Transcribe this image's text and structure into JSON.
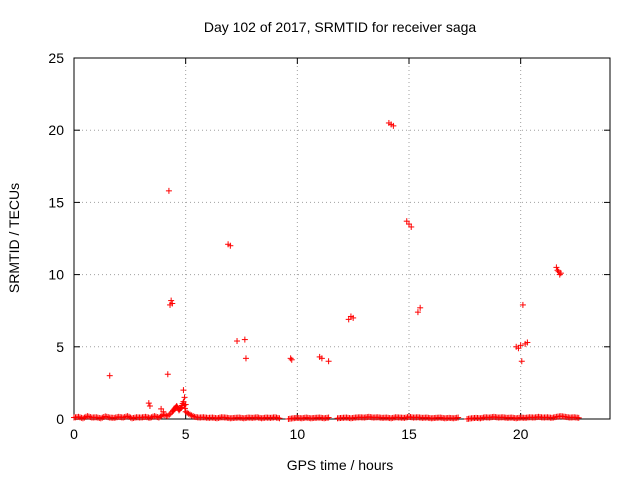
{
  "chart_data": {
    "type": "scatter",
    "title": "Day 102 of 2017, SRMTID for receiver saga",
    "xlabel": "GPS time / hours",
    "ylabel": "SRMTID / TECUs",
    "xlim": [
      0,
      24
    ],
    "ylim": [
      0,
      25
    ],
    "xticks": [
      0,
      5,
      10,
      15,
      20
    ],
    "yticks": [
      0,
      5,
      10,
      15,
      20,
      25
    ],
    "grid": true,
    "marker": "plus",
    "color": "#ff0000",
    "series": [
      {
        "baseline_points": [
          [
            0.0,
            0.1
          ],
          [
            0.2,
            0.15
          ],
          [
            0.4,
            0.05
          ],
          [
            0.6,
            0.2
          ],
          [
            0.8,
            0.1
          ],
          [
            1.0,
            0.12
          ],
          [
            1.2,
            0.05
          ],
          [
            1.4,
            0.18
          ],
          [
            1.6,
            0.1
          ],
          [
            1.8,
            0.08
          ],
          [
            2.0,
            0.15
          ],
          [
            2.2,
            0.1
          ],
          [
            2.4,
            0.2
          ],
          [
            2.6,
            0.05
          ],
          [
            2.8,
            0.12
          ],
          [
            3.0,
            0.1
          ],
          [
            3.2,
            0.15
          ],
          [
            3.4,
            0.08
          ],
          [
            3.6,
            0.2
          ],
          [
            3.8,
            0.1
          ],
          [
            4.0,
            0.3
          ],
          [
            4.2,
            0.2
          ],
          [
            4.4,
            0.5
          ],
          [
            4.5,
            0.7
          ],
          [
            4.6,
            0.9
          ],
          [
            4.7,
            0.6
          ],
          [
            4.8,
            0.8
          ],
          [
            4.9,
            1.2
          ],
          [
            5.0,
            0.5
          ],
          [
            5.2,
            0.3
          ],
          [
            5.4,
            0.15
          ],
          [
            5.6,
            0.1
          ],
          [
            5.8,
            0.12
          ],
          [
            6.0,
            0.08
          ],
          [
            6.2,
            0.1
          ],
          [
            6.4,
            0.05
          ],
          [
            6.6,
            0.12
          ],
          [
            6.8,
            0.1
          ],
          [
            7.0,
            0.05
          ],
          [
            7.2,
            0.08
          ],
          [
            7.4,
            0.1
          ],
          [
            7.6,
            0.05
          ],
          [
            7.8,
            0.1
          ],
          [
            8.0,
            0.08
          ],
          [
            8.2,
            0.12
          ],
          [
            8.4,
            0.05
          ],
          [
            8.6,
            0.1
          ],
          [
            8.8,
            0.08
          ],
          [
            9.0,
            0.12
          ],
          [
            9.2,
            0.05
          ],
          [
            9.6,
            0.0
          ],
          [
            9.8,
            0.05
          ],
          [
            10.0,
            0.08
          ],
          [
            10.2,
            0.05
          ],
          [
            10.4,
            0.1
          ],
          [
            10.6,
            0.05
          ],
          [
            10.8,
            0.08
          ],
          [
            11.0,
            0.1
          ],
          [
            11.2,
            0.05
          ],
          [
            11.4,
            0.1
          ],
          [
            11.8,
            0.05
          ],
          [
            12.0,
            0.08
          ],
          [
            12.2,
            0.1
          ],
          [
            12.4,
            0.05
          ],
          [
            12.6,
            0.1
          ],
          [
            12.8,
            0.12
          ],
          [
            13.0,
            0.1
          ],
          [
            13.2,
            0.15
          ],
          [
            13.4,
            0.1
          ],
          [
            13.6,
            0.12
          ],
          [
            13.8,
            0.08
          ],
          [
            14.0,
            0.1
          ],
          [
            14.2,
            0.05
          ],
          [
            14.4,
            0.12
          ],
          [
            14.6,
            0.1
          ],
          [
            14.8,
            0.08
          ],
          [
            15.0,
            0.15
          ],
          [
            15.2,
            0.1
          ],
          [
            15.4,
            0.12
          ],
          [
            15.6,
            0.08
          ],
          [
            15.8,
            0.1
          ],
          [
            16.0,
            0.05
          ],
          [
            16.2,
            0.08
          ],
          [
            16.4,
            0.1
          ],
          [
            16.6,
            0.05
          ],
          [
            16.8,
            0.08
          ],
          [
            17.0,
            0.05
          ],
          [
            17.2,
            0.1
          ],
          [
            17.6,
            0.0
          ],
          [
            17.8,
            0.05
          ],
          [
            18.0,
            0.08
          ],
          [
            18.2,
            0.05
          ],
          [
            18.4,
            0.12
          ],
          [
            18.6,
            0.1
          ],
          [
            18.8,
            0.15
          ],
          [
            19.0,
            0.1
          ],
          [
            19.2,
            0.12
          ],
          [
            19.4,
            0.08
          ],
          [
            19.6,
            0.1
          ],
          [
            19.8,
            0.05
          ],
          [
            20.0,
            0.1
          ],
          [
            20.2,
            0.08
          ],
          [
            20.4,
            0.12
          ],
          [
            20.6,
            0.1
          ],
          [
            20.8,
            0.15
          ],
          [
            21.0,
            0.1
          ],
          [
            21.2,
            0.12
          ],
          [
            21.4,
            0.08
          ],
          [
            21.6,
            0.15
          ],
          [
            21.8,
            0.2
          ],
          [
            22.0,
            0.15
          ],
          [
            22.2,
            0.1
          ],
          [
            22.4,
            0.12
          ],
          [
            22.6,
            0.08
          ]
        ],
        "outlier_points": [
          [
            1.6,
            3.0
          ],
          [
            3.35,
            1.1
          ],
          [
            3.4,
            0.9
          ],
          [
            3.9,
            0.7
          ],
          [
            4.0,
            0.5
          ],
          [
            4.2,
            3.1
          ],
          [
            4.25,
            15.8
          ],
          [
            4.3,
            7.9
          ],
          [
            4.35,
            8.2
          ],
          [
            4.4,
            8.0
          ],
          [
            4.9,
            2.0
          ],
          [
            4.95,
            1.5
          ],
          [
            5.0,
            1.0
          ],
          [
            6.9,
            12.1
          ],
          [
            7.0,
            12.0
          ],
          [
            7.3,
            5.4
          ],
          [
            7.65,
            5.5
          ],
          [
            7.7,
            4.2
          ],
          [
            9.7,
            4.2
          ],
          [
            9.75,
            4.1
          ],
          [
            11.0,
            4.3
          ],
          [
            11.1,
            4.2
          ],
          [
            11.4,
            4.0
          ],
          [
            12.3,
            6.9
          ],
          [
            12.4,
            7.1
          ],
          [
            12.5,
            7.0
          ],
          [
            14.1,
            20.5
          ],
          [
            14.2,
            20.4
          ],
          [
            14.3,
            20.3
          ],
          [
            14.9,
            13.7
          ],
          [
            15.0,
            13.5
          ],
          [
            15.1,
            13.3
          ],
          [
            15.4,
            7.4
          ],
          [
            15.5,
            7.7
          ],
          [
            19.8,
            5.0
          ],
          [
            19.9,
            4.9
          ],
          [
            20.0,
            5.1
          ],
          [
            20.05,
            4.0
          ],
          [
            20.1,
            7.9
          ],
          [
            20.2,
            5.2
          ],
          [
            20.3,
            5.3
          ],
          [
            21.6,
            10.5
          ],
          [
            21.65,
            10.3
          ],
          [
            21.7,
            10.2
          ],
          [
            21.8,
            10.1
          ],
          [
            21.75,
            10.0
          ]
        ]
      }
    ]
  }
}
